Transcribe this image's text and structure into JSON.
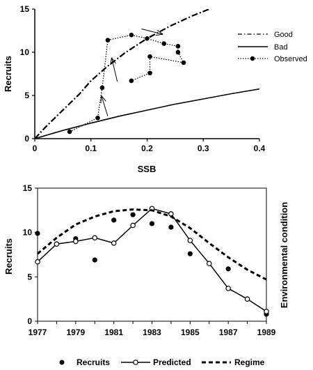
{
  "chart_data": [
    {
      "type": "line",
      "xlabel": "SSB",
      "ylabel": "Recruits",
      "xlim": [
        0,
        0.4
      ],
      "ylim": [
        0,
        15
      ],
      "xticks": [
        "0",
        "0.1",
        "0.2",
        "0.3",
        "0.4"
      ],
      "yticks": [
        "0",
        "5",
        "10",
        "15"
      ],
      "legend_position": "right",
      "series": [
        {
          "name": "Good",
          "style": "dash-dot",
          "x": [
            0,
            0.02,
            0.05,
            0.08,
            0.1,
            0.13,
            0.16,
            0.2,
            0.24,
            0.28,
            0.33
          ],
          "y": [
            0,
            1.4,
            3.3,
            5.2,
            6.7,
            8.4,
            9.9,
            11.6,
            13.0,
            14.2,
            15.5
          ]
        },
        {
          "name": "Bad",
          "style": "solid",
          "x": [
            0,
            0.05,
            0.1,
            0.15,
            0.2,
            0.25,
            0.3,
            0.35,
            0.4
          ],
          "y": [
            0,
            0.95,
            1.8,
            2.6,
            3.3,
            4.0,
            4.6,
            5.2,
            5.75
          ]
        },
        {
          "name": "Observed",
          "style": "dotted-markers",
          "x": [
            0.062,
            0.112,
            0.12,
            0.13,
            0.172,
            0.2,
            0.23,
            0.255,
            0.255,
            0.265,
            0.205,
            0.205,
            0.172
          ],
          "y": [
            0.8,
            2.4,
            5.9,
            11.4,
            12.0,
            11.6,
            11.0,
            10.7,
            10.0,
            8.8,
            9.5,
            7.6,
            6.7
          ]
        }
      ],
      "arrows": [
        {
          "from": [
            0.13,
            2.6
          ],
          "to": [
            0.119,
            4.9
          ]
        },
        {
          "from": [
            0.147,
            6.6
          ],
          "to": [
            0.137,
            9.3
          ]
        },
        {
          "from": [
            0.19,
            12.7
          ],
          "to": [
            0.227,
            12.1
          ]
        }
      ]
    },
    {
      "type": "line",
      "xlabel": "",
      "ylabel": "Recruits",
      "y2label": "Environmental condition",
      "xlim": [
        1977,
        1989
      ],
      "ylim": [
        0,
        15
      ],
      "xticks": [
        "1977",
        "1979",
        "1981",
        "1983",
        "1985",
        "1987",
        "1989"
      ],
      "yticks": [
        "0",
        "5",
        "10",
        "15"
      ],
      "legend_position": "bottom",
      "legend": [
        "Recruits",
        "Predicted",
        "Regime"
      ],
      "series": [
        {
          "name": "Recruits",
          "style": "markers",
          "x": [
            1977,
            1979,
            1980,
            1981,
            1982,
            1983,
            1984,
            1985,
            1987,
            1989
          ],
          "y": [
            9.9,
            9.3,
            6.9,
            11.4,
            12.0,
            11.0,
            10.6,
            7.6,
            5.9,
            0.8
          ]
        },
        {
          "name": "Predicted",
          "style": "solid-open-markers",
          "x": [
            1977,
            1978,
            1979,
            1980,
            1981,
            1982,
            1983,
            1984,
            1985,
            1986,
            1987,
            1988,
            1989
          ],
          "y": [
            6.7,
            8.7,
            9.0,
            9.4,
            8.8,
            10.8,
            12.7,
            12.1,
            9.1,
            6.5,
            3.7,
            2.5,
            1.1
          ]
        },
        {
          "name": "Regime",
          "style": "dashed",
          "x": [
            1977,
            1978,
            1979,
            1980,
            1981,
            1982,
            1983,
            1984,
            1985,
            1986,
            1987,
            1988,
            1989
          ],
          "y": [
            7.6,
            9.4,
            10.9,
            11.8,
            12.4,
            12.6,
            12.5,
            11.8,
            10.5,
            8.8,
            7.2,
            5.8,
            4.7
          ]
        }
      ]
    }
  ]
}
